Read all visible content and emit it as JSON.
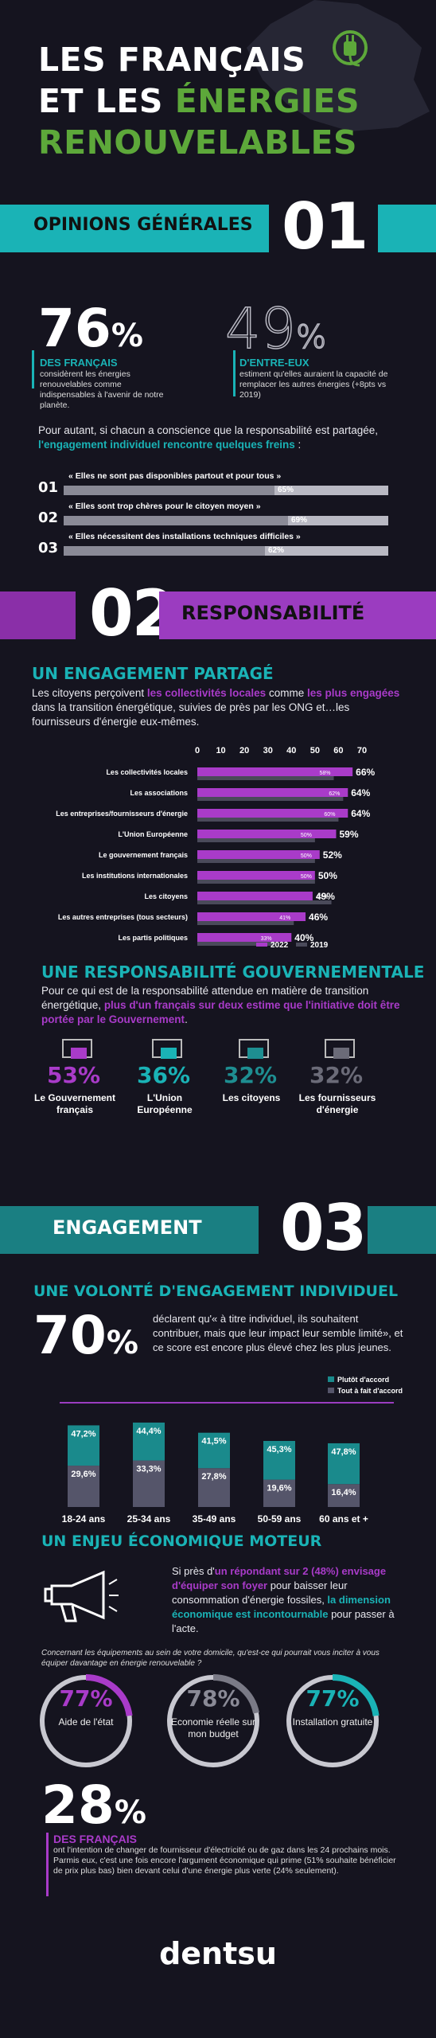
{
  "title": {
    "line1": "LES FRANÇAIS",
    "line2a": "ET LES ",
    "line2b": "ÉNERGIES",
    "line3": "RENOUVELABLES"
  },
  "section1": {
    "title": "OPINIONS GÉNÉRALES",
    "num": "01",
    "stat1_value": "76",
    "stat1_unit": "%",
    "stat1_label": "DES FRANÇAIS",
    "stat1_desc": "considèrent les énergies renouvelables comme indispensables à l'avenir de notre planète.",
    "stat2_value": "49",
    "stat2_unit": "%",
    "stat2_label": "D'ENTRE-EUX",
    "stat2_desc": "estiment qu'elles auraient la capacité de remplacer les autres énergies (+8pts vs 2019)",
    "intro_plain": "Pour autant, si chacun a conscience que la responsabilité est partagée, ",
    "intro_bold": "l'engagement individuel rencontre quelques freins",
    "intro_end": " :",
    "brakes": [
      {
        "num": "01",
        "label": "« Elles ne sont pas disponibles partout et pour tous »",
        "value": 65,
        "pct": "65%"
      },
      {
        "num": "02",
        "label": "« Elles sont trop chères pour le citoyen moyen »",
        "value": 69,
        "pct": "69%"
      },
      {
        "num": "03",
        "label": "« Elles nécessitent des installations techniques difficiles »",
        "value": 62,
        "pct": "62%"
      }
    ]
  },
  "section2": {
    "num": "02",
    "title": "RESPONSABILITÉ",
    "sub1": "UN ENGAGEMENT PARTAGÉ",
    "p1a": "Les citoyens perçoivent ",
    "p1b": "les collectivités locales",
    "p1c": " comme ",
    "p1d": "les plus engagées",
    "p1e": " dans la transition énergétique, suivies de près par les ONG et…les fournisseurs d'énergie eux-mêmes.",
    "legend_2022": "2022",
    "legend_2019": "2019",
    "sub2": "UNE RESPONSABILITÉ GOUVERNEMENTALE",
    "p2a": "Pour ce qui est de la responsabilité attendue en matière de transition énergétique, ",
    "p2b": "plus d'un français sur deux estime que l'initiative doit être portée par le Gouvernement",
    "p2c": ".",
    "gov": [
      {
        "pct": "53%",
        "label": "Le Gouvernement français",
        "color": "#a93bc9"
      },
      {
        "pct": "36%",
        "label": "L'Union Européenne",
        "color": "#1ab3b6"
      },
      {
        "pct": "32%",
        "label": "Les citoyens",
        "color": "#1e8e91"
      },
      {
        "pct": "32%",
        "label": "Les fournisseurs d'énergie",
        "color": "#6b6b78"
      }
    ]
  },
  "section3": {
    "title": "ENGAGEMENT",
    "num": "03",
    "sub1": "UNE VOLONTÉ D'ENGAGEMENT INDIVIDUEL",
    "big": "70",
    "big_unit": "%",
    "big_desc": "déclarent qu'« à titre individuel, ils souhaitent contribuer, mais que leur impact leur semble limité», et ce score est encore plus élevé chez les plus jeunes.",
    "legend_a": "Plutôt d'accord",
    "legend_b": "Tout à fait d'accord",
    "sub2": "UN ENJEU ÉCONOMIQUE MOTEUR",
    "p3a": "Si près d'",
    "p3b": "un répondant sur 2 (48%) envisage d'équiper son foyer",
    "p3c": " pour baisser leur consommation d'énergie fossiles, ",
    "p3d": "la dimension économique est incontournable",
    "p3e": " pour passer à l'acte.",
    "question": "Concernant les équipements au sein de votre domicile, qu'est-ce qui pourrait vous inciter à vous équiper davantage en énergie renouvelable ?",
    "rings": [
      {
        "value": 77,
        "pct": "77%",
        "label": "Aide de l'état",
        "color": "#a93bc9",
        "pcolor": "#a93bc9"
      },
      {
        "value": 78,
        "pct": "78%",
        "label": "Economie réelle sur mon budget",
        "color": "#7a7a86",
        "pcolor": "#8a8a96"
      },
      {
        "value": 77,
        "pct": "77%",
        "label": "Installation gratuite",
        "color": "#1ab3b6",
        "pcolor": "#1ab3b6"
      }
    ],
    "last_value": "28",
    "last_unit": "%",
    "last_label": "DES FRANÇAIS",
    "last_desc": "ont l'intention de changer de fournisseur d'électricité ou de gaz dans les 24 prochains mois. Parmis eux, c'est une fois encore l'argument économique qui prime (51% souhaite bénéficier de prix plus bas) bien devant celui d'une énergie plus verte (24% seulement)."
  },
  "brand": "dentsu",
  "chart_data": [
    {
      "type": "bar",
      "orientation": "horizontal",
      "title": "",
      "categories": [
        "Les collectivités locales",
        "Les associations",
        "Les entreprises/fournisseurs d'énergie",
        "L'Union Européenne",
        "Le gouvernement français",
        "Les institutions internationales",
        "Les citoyens",
        "Les autres entreprises (tous secteurs)",
        "Les partis politiques"
      ],
      "series": [
        {
          "name": "2022",
          "values": [
            66,
            64,
            64,
            59,
            52,
            50,
            49,
            46,
            40
          ],
          "labels": [
            "66%",
            "64%",
            "64%",
            "59%",
            "52%",
            "50%",
            "49%",
            "46%",
            "40%"
          ],
          "color": "#a93bc9"
        },
        {
          "name": "2019",
          "values": [
            58,
            62,
            60,
            50,
            50,
            50,
            57,
            41,
            33
          ],
          "labels": [
            "58%",
            "62%",
            "60%",
            "50%",
            "50%",
            "50%",
            "57%",
            "41%",
            "33%"
          ],
          "color": "#4a4a5a"
        }
      ],
      "xlim": [
        0,
        70
      ],
      "ticks": [
        "0",
        "10",
        "20",
        "30",
        "40",
        "50",
        "60",
        "70"
      ],
      "legend": "bottom"
    },
    {
      "type": "bar",
      "stacked": true,
      "title": "",
      "categories": [
        "18-24 ans",
        "25-34 ans",
        "35-49 ans",
        "50-59 ans",
        "60 ans et +"
      ],
      "series": [
        {
          "name": "Plutôt d'accord",
          "values": [
            47.2,
            44.4,
            41.5,
            45.3,
            47.8
          ],
          "labels": [
            "47,2%",
            "44,4%",
            "41,5%",
            "45,3%",
            "47,8%"
          ],
          "color": "#1a8a8c"
        },
        {
          "name": "Tout à fait d'accord",
          "values": [
            29.6,
            33.3,
            27.8,
            19.6,
            16.4
          ],
          "labels": [
            "29,6%",
            "33,3%",
            "27,8%",
            "19,6%",
            "16,4%"
          ],
          "color": "#55556a"
        }
      ],
      "legend": "top-right"
    }
  ]
}
